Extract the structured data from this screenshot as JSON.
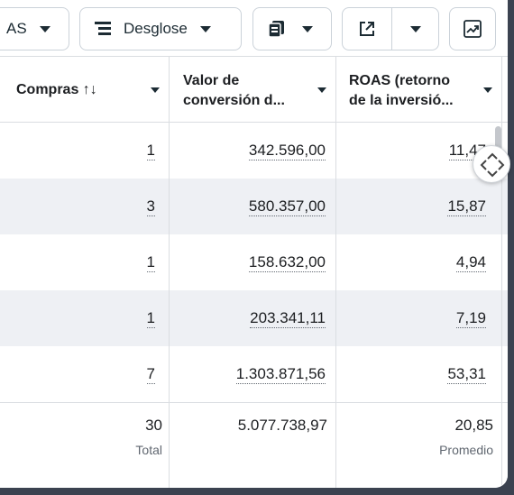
{
  "toolbar": {
    "columns_label": "AS",
    "breakdown_label": "Desglose"
  },
  "headers": {
    "purchases": "Compras ↑↓",
    "conv_value_line1": "Valor de",
    "conv_value_line2": "conversión d...",
    "roas_line1": "ROAS (retorno",
    "roas_line2": "de la inversió..."
  },
  "rows": [
    {
      "purchases": "1",
      "conv_value": "342.596,00",
      "roas": "11,47"
    },
    {
      "purchases": "3",
      "conv_value": "580.357,00",
      "roas": "15,87"
    },
    {
      "purchases": "1",
      "conv_value": "158.632,00",
      "roas": "4,94"
    },
    {
      "purchases": "1",
      "conv_value": "203.341,11",
      "roas": "7,19"
    },
    {
      "purchases": "7",
      "conv_value": "1.303.871,56",
      "roas": "53,31"
    }
  ],
  "totals": {
    "purchases": "30",
    "purchases_sub": "Total",
    "conv_value": "5.077.738,97",
    "roas": "20,85",
    "roas_sub": "Promedio"
  },
  "icons": {
    "breakdown": "breakdown-icon",
    "reports": "reports-icon",
    "export": "export-icon",
    "chart": "chart-icon",
    "pan": "pan-handle-icon"
  }
}
